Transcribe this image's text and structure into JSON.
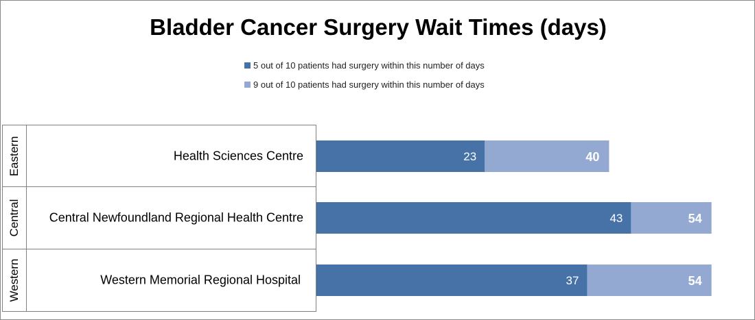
{
  "chart_data": {
    "type": "bar",
    "orientation": "horizontal",
    "title": "Bladder Cancer Surgery Wait Times (days)",
    "legend_placement": "top",
    "grid": false,
    "xlim": [
      0,
      55
    ],
    "categories": [
      {
        "region": "Eastern",
        "facility": "Health Sciences Centre"
      },
      {
        "region": "Central",
        "facility": "Central Newfoundland Regional Health Centre"
      },
      {
        "region": "Western",
        "facility": "Western Memorial Regional Hospital"
      }
    ],
    "series": [
      {
        "name": "5 out of 10 patients had surgery within this number of days",
        "color": "#4672A8",
        "values": [
          23,
          43,
          37
        ]
      },
      {
        "name": "9 out of 10 patients had surgery within this number of days",
        "color": "#93A9D1",
        "values": [
          40,
          54,
          54
        ]
      }
    ]
  }
}
